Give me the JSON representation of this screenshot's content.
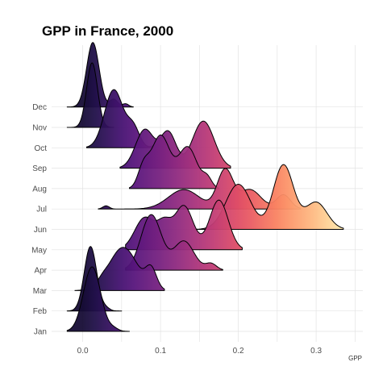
{
  "chart_data": {
    "type": "ridgeline",
    "title": "GPP in France, 2000",
    "xlabel": "GPP",
    "ylabel": "",
    "xlim": [
      -0.04,
      0.36
    ],
    "x_ticks": [
      0.0,
      0.1,
      0.2,
      0.3
    ],
    "x_tick_labels": [
      "0.0",
      "0.1",
      "0.2",
      "0.3"
    ],
    "fill_colormap": "magma",
    "fill_range": [
      0.0,
      0.33
    ],
    "grid": true,
    "legend": "none",
    "categories": [
      "Jan",
      "Feb",
      "Mar",
      "Apr",
      "May",
      "Jun",
      "Jul",
      "Aug",
      "Sep",
      "Oct",
      "Nov",
      "Dec"
    ],
    "series": [
      {
        "month": "Jan",
        "range": [
          -0.02,
          0.06
        ],
        "peaks": [
          [
            0.012,
            0.011,
            1.0
          ],
          [
            0.04,
            0.006,
            0.04
          ]
        ]
      },
      {
        "month": "Feb",
        "range": [
          -0.02,
          0.05
        ],
        "peaks": [
          [
            0.01,
            0.008,
            1.0
          ],
          [
            0.03,
            0.005,
            0.04
          ]
        ]
      },
      {
        "month": "Mar",
        "range": [
          -0.01,
          0.105
        ],
        "peaks": [
          [
            0.052,
            0.018,
            0.67
          ],
          [
            0.088,
            0.007,
            0.3
          ],
          [
            0.025,
            0.006,
            0.05
          ]
        ]
      },
      {
        "month": "Apr",
        "range": [
          0.055,
          0.18
        ],
        "peaks": [
          [
            0.088,
            0.013,
            0.86
          ],
          [
            0.13,
            0.013,
            0.45
          ],
          [
            0.165,
            0.007,
            0.1
          ]
        ]
      },
      {
        "month": "May",
        "range": [
          0.055,
          0.205
        ],
        "peaks": [
          [
            0.08,
            0.013,
            0.5
          ],
          [
            0.13,
            0.012,
            0.68
          ],
          [
            0.175,
            0.012,
            0.77
          ],
          [
            0.105,
            0.009,
            0.35
          ]
        ]
      },
      {
        "month": "Jun",
        "range": [
          0.145,
          0.335
        ],
        "peaks": [
          [
            0.2,
            0.016,
            0.7
          ],
          [
            0.258,
            0.013,
            1.0
          ],
          [
            0.3,
            0.014,
            0.42
          ]
        ]
      },
      {
        "month": "Jul",
        "range": [
          0.02,
          0.28
        ],
        "peaks": [
          [
            0.13,
            0.02,
            0.3
          ],
          [
            0.183,
            0.01,
            0.6
          ],
          [
            0.215,
            0.014,
            0.3
          ],
          [
            0.258,
            0.009,
            0.22
          ],
          [
            0.03,
            0.004,
            0.05
          ]
        ]
      },
      {
        "month": "Aug",
        "range": [
          0.06,
          0.175
        ],
        "peaks": [
          [
            0.1,
            0.012,
            0.82
          ],
          [
            0.135,
            0.012,
            0.64
          ],
          [
            0.078,
            0.007,
            0.3
          ],
          [
            0.16,
            0.006,
            0.15
          ]
        ]
      },
      {
        "month": "Sep",
        "range": [
          0.048,
          0.19
        ],
        "peaks": [
          [
            0.08,
            0.012,
            0.6
          ],
          [
            0.11,
            0.01,
            0.55
          ],
          [
            0.155,
            0.014,
            0.73
          ]
        ]
      },
      {
        "month": "Oct",
        "range": [
          0.005,
          0.11
        ],
        "peaks": [
          [
            0.04,
            0.012,
            0.9
          ],
          [
            0.065,
            0.008,
            0.3
          ],
          [
            0.095,
            0.005,
            0.05
          ]
        ]
      },
      {
        "month": "Nov",
        "range": [
          -0.02,
          0.04
        ],
        "peaks": [
          [
            0.012,
            0.007,
            1.0
          ]
        ]
      },
      {
        "month": "Dec",
        "range": [
          -0.02,
          0.065
        ],
        "peaks": [
          [
            0.013,
            0.008,
            1.0
          ],
          [
            0.04,
            0.005,
            0.12
          ],
          [
            0.055,
            0.004,
            0.05
          ]
        ]
      }
    ]
  }
}
